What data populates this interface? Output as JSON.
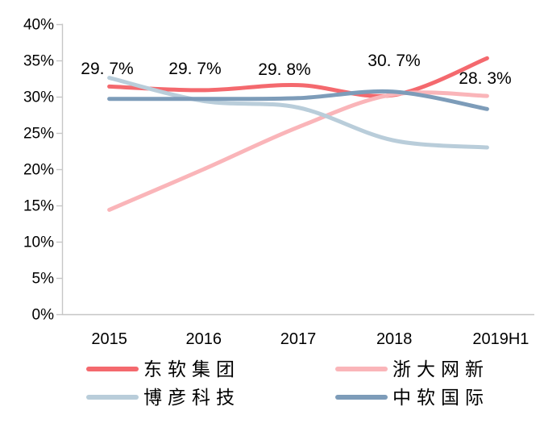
{
  "chart_data": {
    "type": "line",
    "title": "",
    "categories": [
      "2015",
      "2016",
      "2017",
      "2018",
      "2019H1"
    ],
    "series": [
      {
        "name": "东软集团",
        "color": "#f4696e",
        "values": [
          31.4,
          30.9,
          31.6,
          30.2,
          35.3
        ]
      },
      {
        "name": "浙大网新",
        "color": "#fab5b9",
        "values": [
          14.4,
          20.0,
          25.8,
          30.3,
          30.1
        ]
      },
      {
        "name": "博彦科技",
        "color": "#b9cdda",
        "values": [
          32.6,
          29.4,
          28.5,
          24.0,
          23.0
        ]
      },
      {
        "name": "中软国际",
        "color": "#7d9cb9",
        "values": [
          29.7,
          29.7,
          29.8,
          30.7,
          28.3
        ]
      }
    ],
    "point_labels": {
      "series": "中软国际",
      "texts": [
        "29. 7%",
        "29. 7%",
        "29. 8%",
        "30. 7%",
        "28. 3%"
      ],
      "anchors": [
        [
          133,
          92
        ],
        [
          242,
          92
        ],
        [
          353,
          93
        ],
        [
          489,
          82
        ],
        [
          602,
          104
        ]
      ]
    },
    "y_axis": {
      "min": 0,
      "max": 40,
      "step": 5,
      "tick_labels": [
        "0%",
        "5%",
        "10%",
        "15%",
        "20%",
        "25%",
        "30%",
        "35%",
        "40%"
      ]
    },
    "x_axis": {
      "tick_labels": [
        "2015",
        "2016",
        "2017",
        "2018",
        "2019H1"
      ],
      "label_x_offsets": [
        0,
        0,
        0,
        2,
        17
      ]
    },
    "legend": {
      "position": "bottom",
      "columns": 2,
      "entries": [
        {
          "label": "东软集团",
          "color": "#f4696e"
        },
        {
          "label": "浙大网新",
          "color": "#fab5b9"
        },
        {
          "label": "博彦科技",
          "color": "#b9cdda"
        },
        {
          "label": "中软国际",
          "color": "#7d9cb9"
        }
      ]
    },
    "grid": false,
    "axis_color": "#c6c6c6",
    "text_color": "#000000",
    "line_width": 5
  }
}
